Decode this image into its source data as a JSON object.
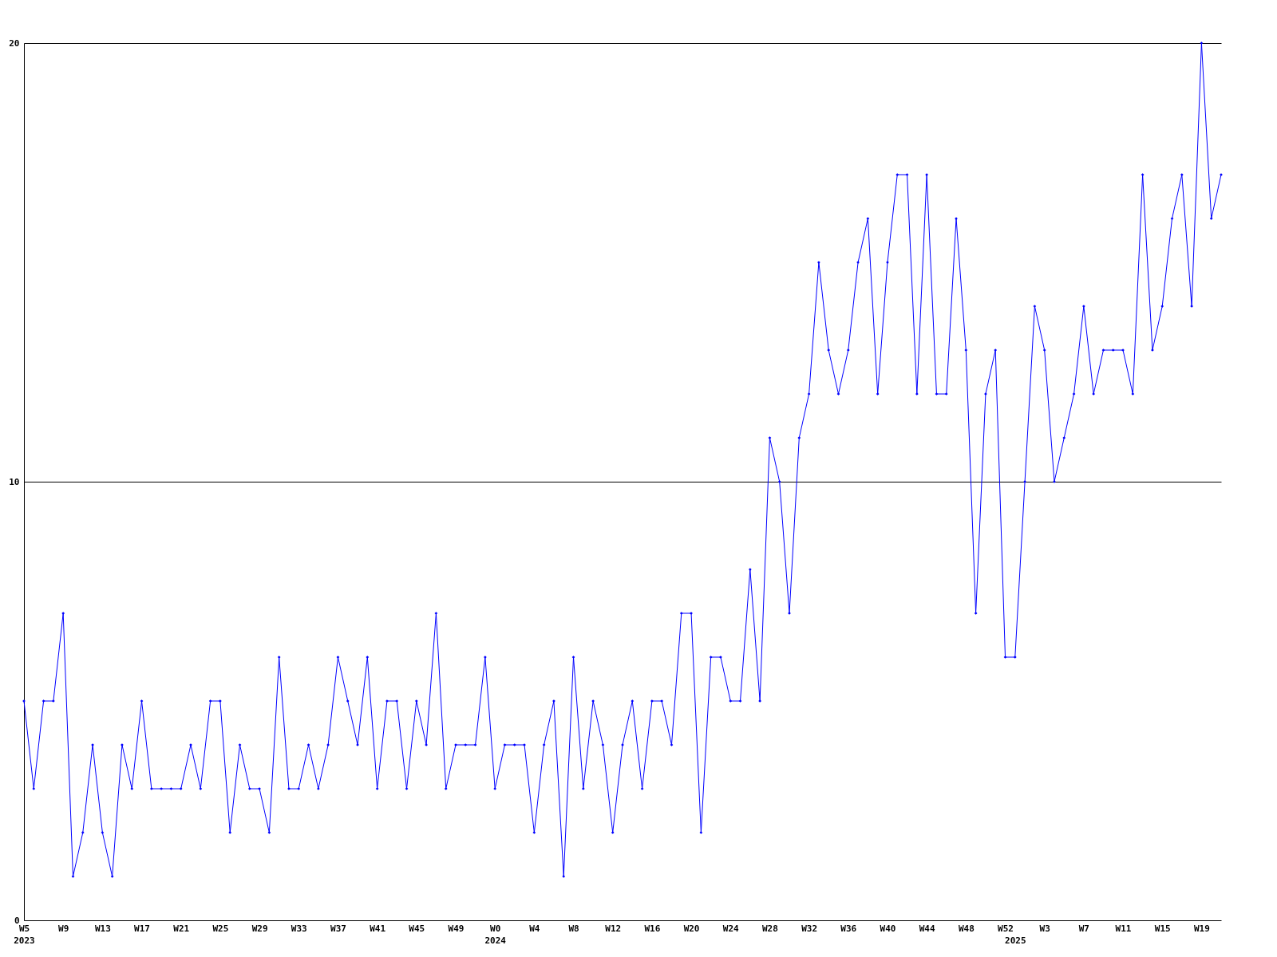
{
  "chart_data": {
    "type": "line",
    "categories": [
      "W5\n2023",
      null,
      null,
      null,
      "W9",
      null,
      null,
      null,
      "W13",
      null,
      null,
      null,
      "W17",
      null,
      null,
      null,
      "W21",
      null,
      null,
      null,
      "W25",
      null,
      null,
      null,
      "W29",
      null,
      null,
      null,
      "W33",
      null,
      null,
      null,
      "W37",
      null,
      null,
      null,
      "W41",
      null,
      null,
      null,
      "W45",
      null,
      null,
      null,
      "W49",
      null,
      null,
      null,
      "W0\n2024",
      null,
      null,
      null,
      "W4",
      null,
      null,
      null,
      "W8",
      null,
      null,
      null,
      "W12",
      null,
      null,
      null,
      "W16",
      null,
      null,
      null,
      "W20",
      null,
      null,
      null,
      "W24",
      null,
      null,
      null,
      "W28",
      null,
      null,
      null,
      "W32",
      null,
      null,
      null,
      "W36",
      null,
      null,
      null,
      "W40",
      null,
      null,
      null,
      "W44",
      null,
      null,
      null,
      "W48",
      null,
      null,
      null,
      "W52",
      " \n2025",
      null,
      null,
      "W3",
      null,
      null,
      null,
      "W7",
      null,
      null,
      null,
      "W11",
      null,
      null,
      null,
      "W15",
      null,
      null,
      null,
      "W19",
      null,
      null
    ],
    "series": [
      {
        "color": "#0000ff",
        "values": [
          5,
          3,
          5,
          5,
          7,
          1,
          2,
          4,
          2,
          1,
          4,
          3,
          5,
          3,
          3,
          3,
          3,
          4,
          3,
          5,
          5,
          2,
          4,
          3,
          3,
          2,
          6,
          3,
          3,
          4,
          3,
          4,
          6,
          5,
          4,
          6,
          3,
          5,
          5,
          3,
          5,
          4,
          7,
          3,
          4,
          4,
          4,
          6,
          3,
          4,
          4,
          4,
          2,
          4,
          5,
          1,
          6,
          3,
          5,
          4,
          2,
          4,
          5,
          3,
          5,
          5,
          4,
          7,
          7,
          2,
          6,
          6,
          5,
          5,
          8,
          5,
          11,
          10,
          7,
          11,
          12,
          15,
          13,
          12,
          13,
          15,
          16,
          12,
          15,
          17,
          17,
          12,
          17,
          12,
          12,
          16,
          13,
          7,
          12,
          13,
          6,
          6,
          10,
          14,
          13,
          10,
          11,
          12,
          14,
          12,
          13,
          13,
          13,
          12,
          17,
          13,
          14,
          16,
          17,
          14,
          20,
          16,
          17
        ]
      }
    ],
    "ylim": [
      0,
      20
    ],
    "yticks": [
      0,
      10,
      20
    ],
    "grid": "y",
    "marker": "diamond",
    "line_style": "solid"
  }
}
